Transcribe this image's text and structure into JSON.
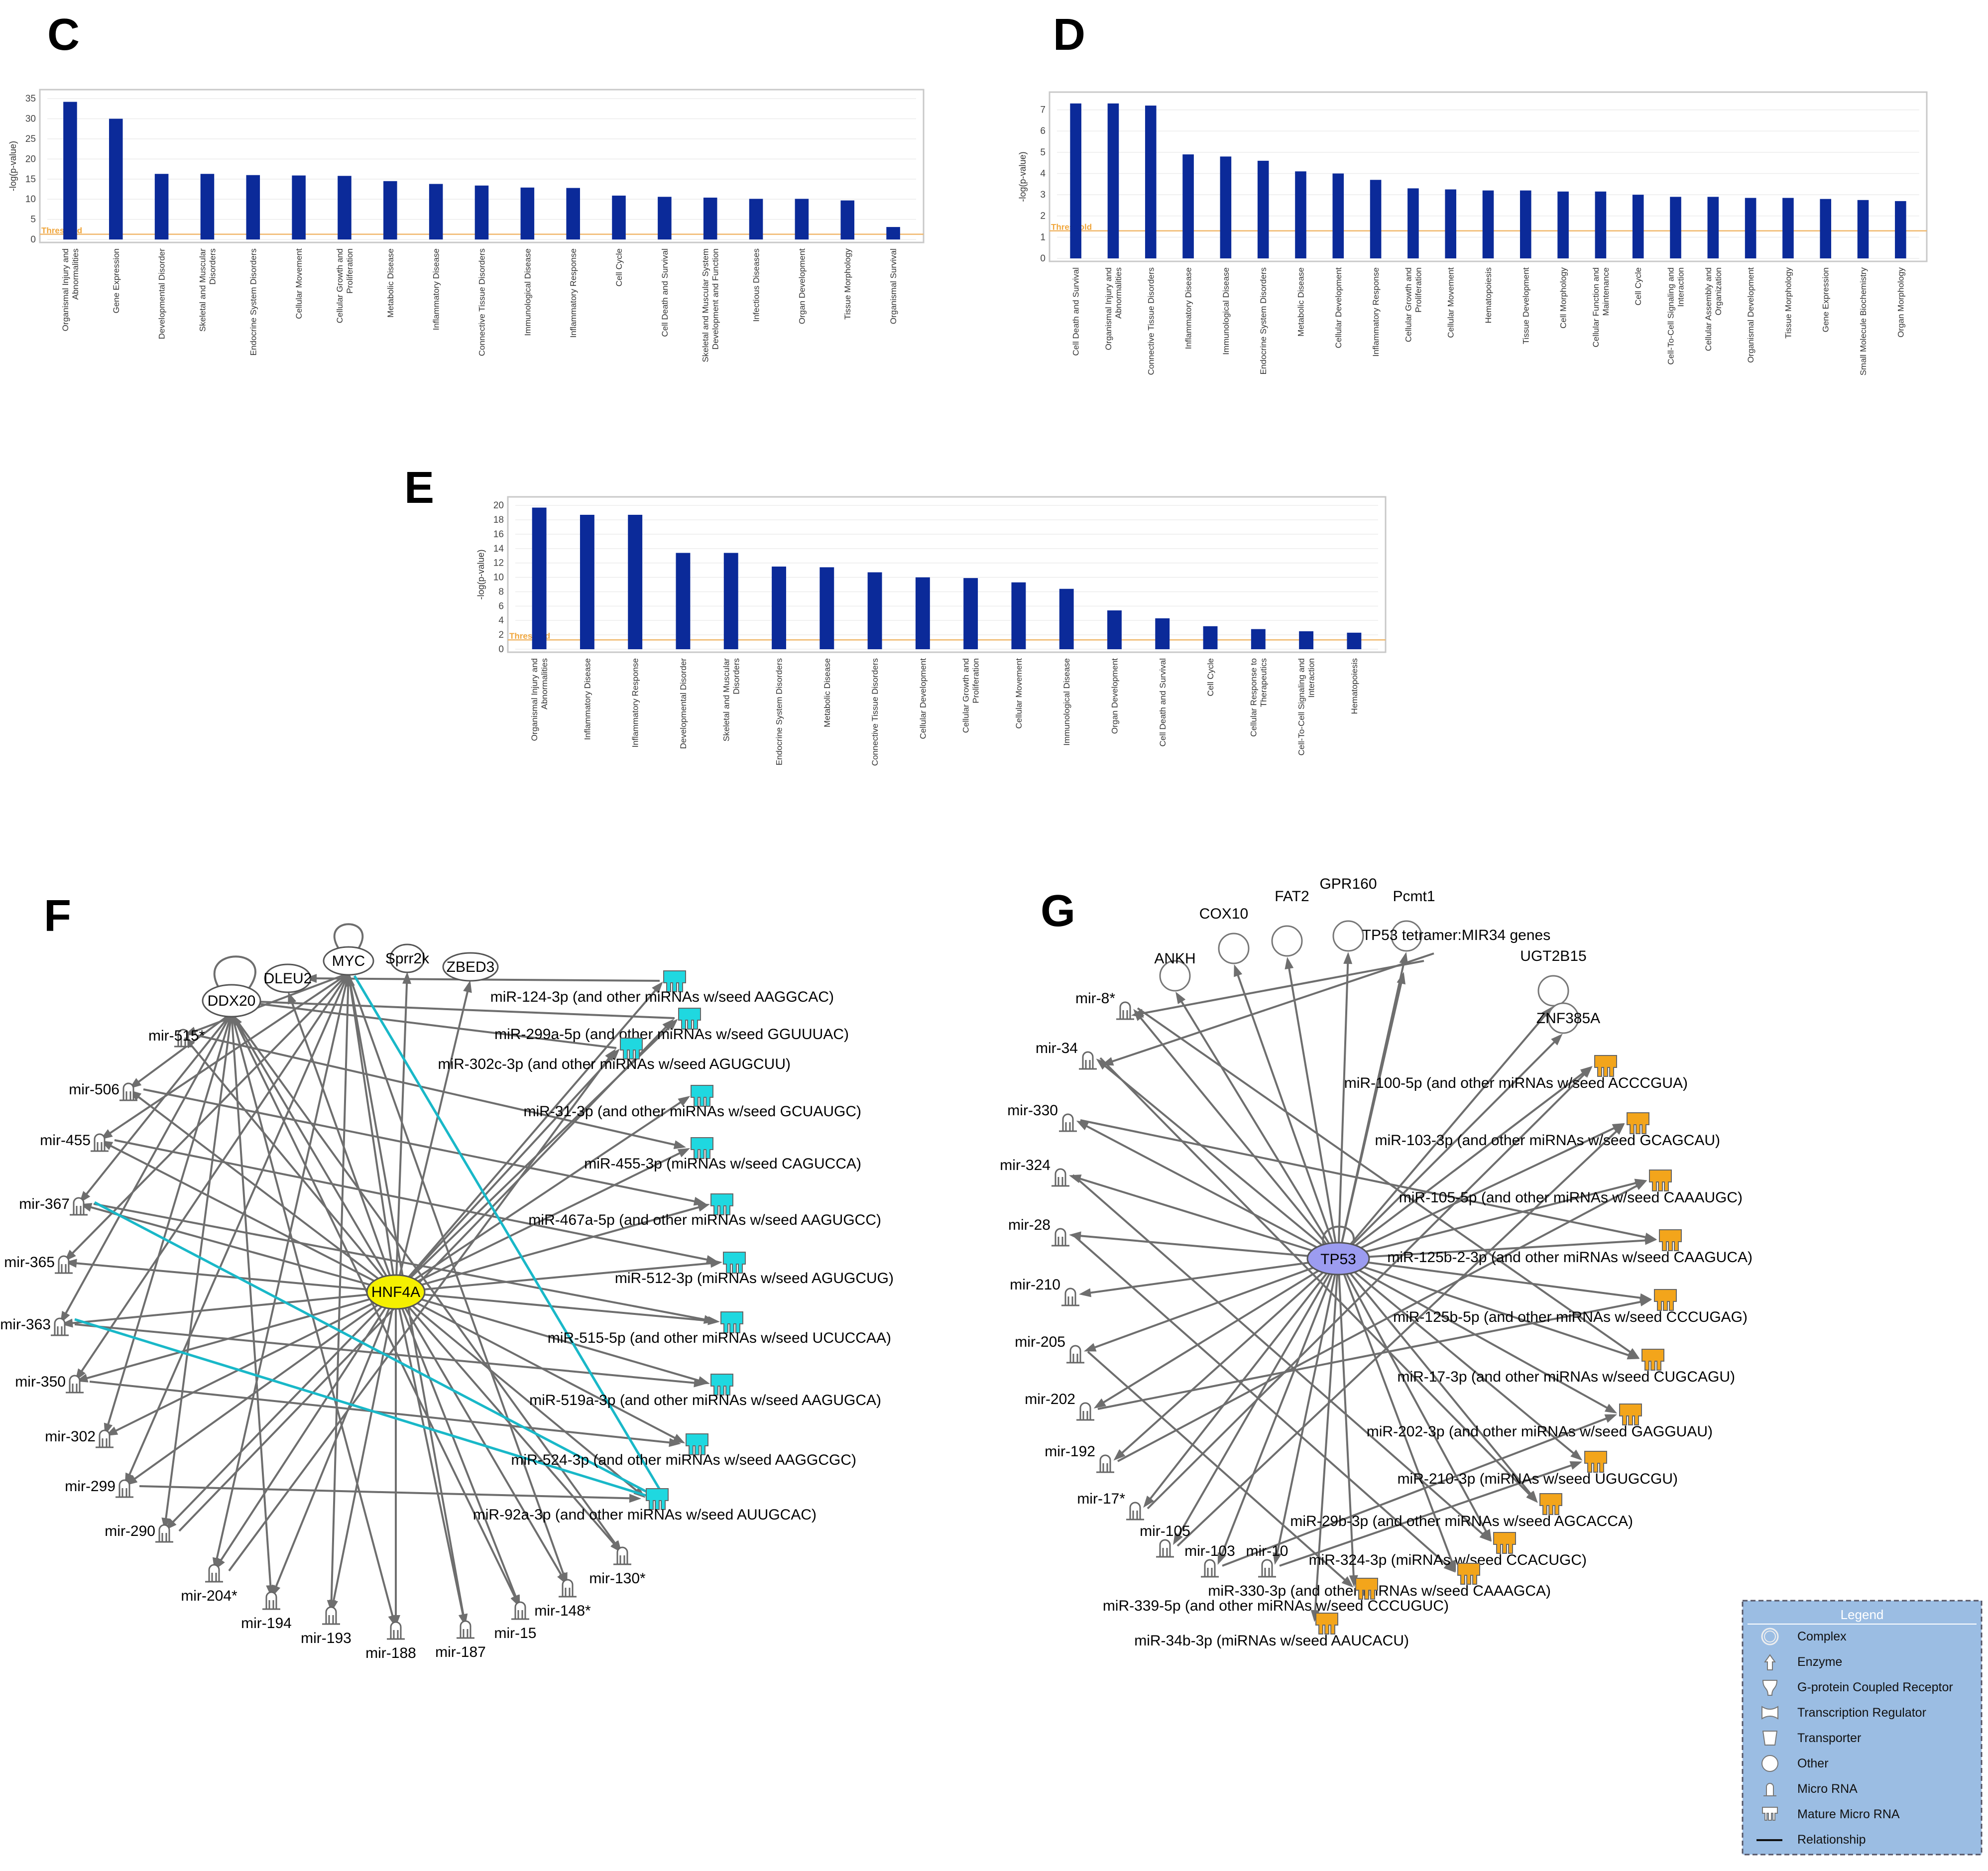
{
  "panels": {
    "C": "C",
    "D": "D",
    "E": "E",
    "F": "F",
    "G": "G"
  },
  "chart_data": [
    {
      "id": "C",
      "type": "bar",
      "title": "",
      "ylabel": "-log(p-value)",
      "xlabel": "",
      "ylim": [
        0,
        36
      ],
      "yticks": [
        0,
        5,
        10,
        15,
        20,
        25,
        30,
        35
      ],
      "threshold": 1.3,
      "threshold_label": "Threshold",
      "categories": [
        "Organismal Injury and Abnormalities",
        "Gene Expression",
        "Developmental Disorder",
        "Skeletal and Muscular Disorders",
        "Endocrine System Disorders",
        "Cellular Movement",
        "Cellular Growth and Proliferation",
        "Metabolic Disease",
        "Inflammatory Disease",
        "Connective Tissue Disorders",
        "Immunological Disease",
        "Inflammatory Response",
        "Cell Cycle",
        "Cell Death and Survival",
        "Skeletal and Muscular System Development and Function",
        "Infectious Diseases",
        "Organ Development",
        "Tissue Morphology",
        "Organismal Survival"
      ],
      "values": [
        34.2,
        30,
        16.3,
        16.3,
        16,
        15.9,
        15.8,
        14.5,
        13.8,
        13.4,
        12.9,
        12.8,
        10.9,
        10.6,
        10.4,
        10.1,
        10.1,
        9.7,
        3.1
      ]
    },
    {
      "id": "D",
      "type": "bar",
      "title": "",
      "ylabel": "-log(p-value)",
      "xlabel": "",
      "ylim": [
        0,
        7.6
      ],
      "yticks": [
        0,
        1,
        2,
        3,
        4,
        5,
        6,
        7
      ],
      "threshold": 1.3,
      "threshold_label": "Threshold",
      "categories": [
        "Cell Death and Survival",
        "Organismal Injury and Abnormalities",
        "Connective Tissue Disorders",
        "Inflammatory Disease",
        "Immunological Disease",
        "Endocrine System Disorders",
        "Metabolic Disease",
        "Cellular Development",
        "Inflammatory Response",
        "Cellular Growth and Proliferation",
        "Cellular Movement",
        "Hematopoiesis",
        "Tissue Development",
        "Cell Morphology",
        "Cellular Function and Maintenance",
        "Cell Cycle",
        "Cell-To-Cell Signaling and Interaction",
        "Cellular Assembly and Organization",
        "Organismal Development",
        "Tissue Morphology",
        "Gene Expression",
        "Small Molecule Biochemistry",
        "Organ Morphology"
      ],
      "values": [
        7.3,
        7.3,
        7.2,
        4.9,
        4.8,
        4.6,
        4.1,
        4.0,
        3.7,
        3.3,
        3.25,
        3.2,
        3.2,
        3.15,
        3.15,
        3.0,
        2.9,
        2.9,
        2.85,
        2.85,
        2.8,
        2.75,
        2.7
      ]
    },
    {
      "id": "E",
      "type": "bar",
      "title": "",
      "ylabel": "-log(p-value)",
      "xlabel": "",
      "ylim": [
        0,
        20.5
      ],
      "yticks": [
        0,
        2,
        4,
        6,
        8,
        10,
        12,
        14,
        16,
        18,
        20
      ],
      "threshold": 1.3,
      "threshold_label": "Threshold",
      "categories": [
        "Organismal Injury and Abnormalities",
        "Inflammatory Disease",
        "Inflammatory Response",
        "Developmental Disorder",
        "Skeletal and Muscular Disorders",
        "Endocrine System Disorders",
        "Metabolic Disease",
        "Connective Tissue Disorders",
        "Cellular Development",
        "Cellular Growth and Proliferation",
        "Cellular Movement",
        "Immunological Disease",
        "Organ Development",
        "Cell Death and Survival",
        "Cell Cycle",
        "Cellular Response to Therapeutics",
        "Cell-To-Cell Signaling and Interaction",
        "Hematopoiesis"
      ],
      "values": [
        19.7,
        18.7,
        18.7,
        13.4,
        13.4,
        11.5,
        11.4,
        10.7,
        10.0,
        9.9,
        9.3,
        8.4,
        5.4,
        4.3,
        3.2,
        2.8,
        2.5,
        2.3
      ]
    }
  ],
  "network_f": {
    "center": "HNF4A",
    "top_nodes": [
      "MYC",
      "Sprr2k",
      "ZBED3",
      "DLEU2",
      "DDX20"
    ],
    "outer_mirs": [
      "mir-515*",
      "mir-506",
      "mir-455",
      "mir-367",
      "mir-365",
      "mir-363",
      "mir-350",
      "mir-302",
      "mir-299",
      "mir-290",
      "mir-204*",
      "mir-194",
      "mir-193",
      "mir-188",
      "mir-187",
      "mir-15",
      "mir-148*",
      "mir-130*"
    ],
    "mature_mirs": [
      "miR-124-3p (and other miRNAs w/seed AAGGCAC)",
      "miR-299a-5p (and other miRNAs w/seed GGUUUAC)",
      "miR-302c-3p (and other miRNAs w/seed AGUGCUU)",
      "miR-31-3p (and other miRNAs w/seed GCUAUGC)",
      "miR-455-3p (miRNAs w/seed CAGUCCA)",
      "miR-467a-5p (and other miRNAs w/seed AAGUGCC)",
      "miR-512-3p (miRNAs w/seed AGUGCUG)",
      "miR-515-5p (and other miRNAs w/seed UCUCCAA)",
      "miR-519a-3p (and other miRNAs w/seed AAGUGCA)",
      "miR-524-3p (and other miRNAs w/seed AAGGCGC)",
      "miR-92a-3p (and other miRNAs w/seed AUUGCAC)"
    ]
  },
  "network_g": {
    "center": "TP53",
    "top_nodes": [
      "ANKH",
      "COX10",
      "FAT2",
      "GPR160",
      "Pcmt1",
      "TP53 tetramer:MIR34 genes",
      "UGT2B15",
      "ZNF385A"
    ],
    "outer_mirs": [
      "mir-8*",
      "mir-34",
      "mir-330",
      "mir-324",
      "mir-28",
      "mir-210",
      "mir-205",
      "mir-202",
      "mir-192",
      "mir-17*",
      "mir-105",
      "mir-103",
      "mir-10"
    ],
    "mature_mirs": [
      "miR-100-5p (and other miRNAs w/seed ACCCGUA)",
      "miR-103-3p (and other miRNAs w/seed GCAGCAU)",
      "miR-105-5p (and other miRNAs w/seed CAAAUGC)",
      "miR-125b-2-3p (and other miRNAs w/seed CAAGUCA)",
      "miR-125b-5p (and other miRNAs w/seed CCCUGAG)",
      "miR-17-3p (and other miRNAs w/seed CUGCAGU)",
      "miR-202-3p (and other miRNAs w/seed GAGGUAU)",
      "miR-210-3p (miRNAs w/seed UGUGCGU)",
      "miR-29b-3p (and other miRNAs w/seed AGCACCA)",
      "miR-324-3p (miRNAs w/seed CCACUGC)",
      "miR-330-3p (and other miRNAs w/seed CAAAGCA)",
      "miR-339-5p (and other miRNAs w/seed CCCUGUC)",
      "miR-34b-3p (miRNAs w/seed AAUCACU)"
    ]
  },
  "legend": {
    "title": "Legend",
    "items": [
      "Complex",
      "Enzyme",
      "G-protein Coupled Receptor",
      "Transcription Regulator",
      "Transporter",
      "Other",
      "Micro RNA",
      "Mature Micro RNA",
      "Relationship"
    ]
  },
  "colors": {
    "bar": "#0b2a99",
    "threshold": "#f0b76a",
    "cyan": "#19b8c8",
    "hnf4a": "#f5f000",
    "tp53": "#9c9cf0",
    "mature_f": "#1fd8e0",
    "mature_g": "#f3a51b",
    "legend_bg": "#9bbde3"
  }
}
